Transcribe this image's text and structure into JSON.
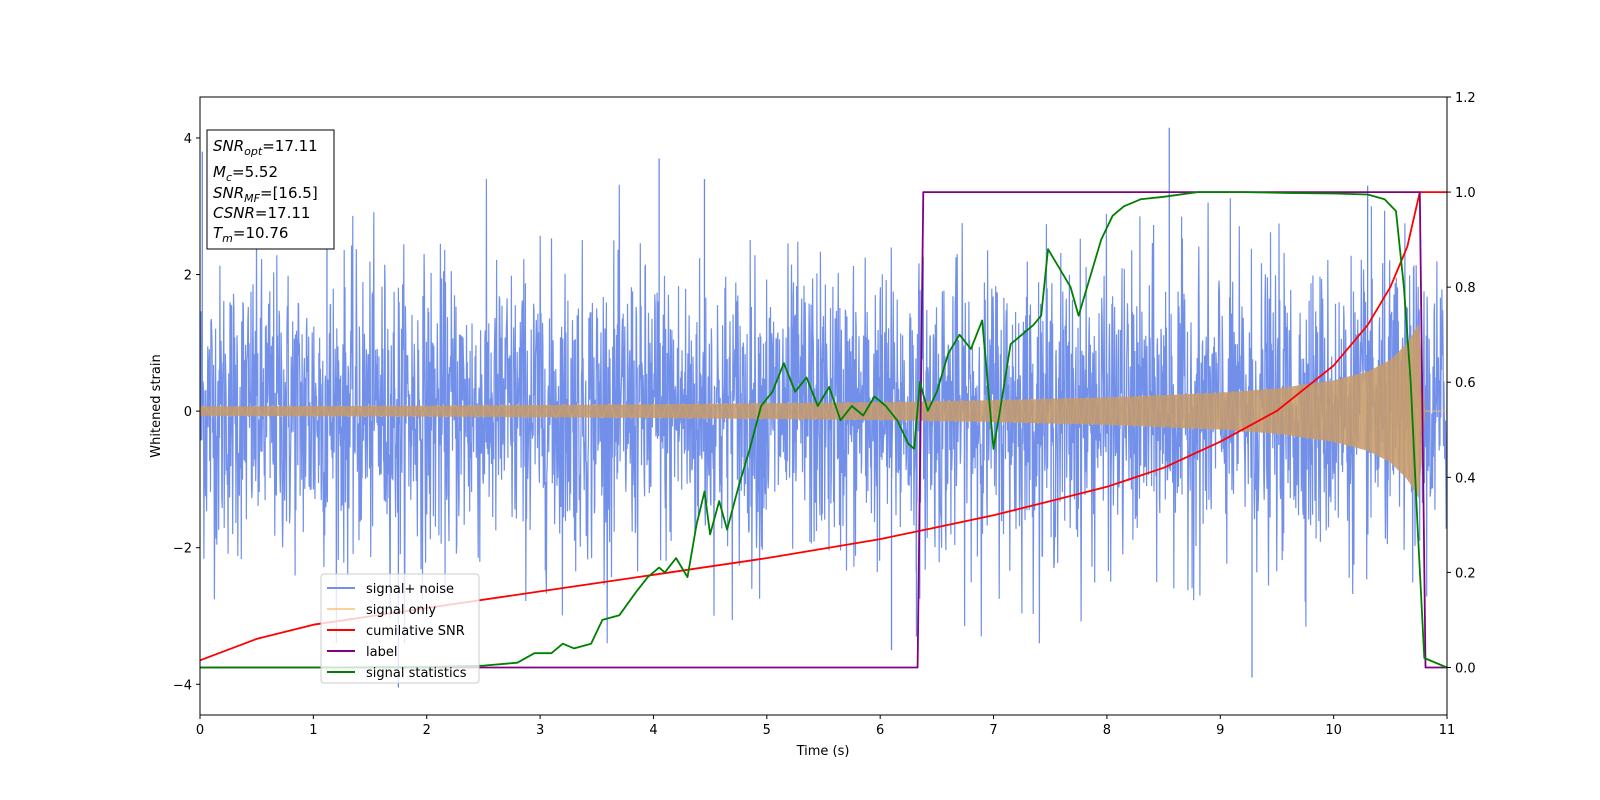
{
  "chart_data": {
    "type": "line",
    "xlabel": "Time (s)",
    "ylabel": "Whitened strain",
    "xlim": [
      0,
      11
    ],
    "ylim_left": [
      -4.45,
      4.6
    ],
    "ylim_right": [
      -0.1,
      1.2
    ],
    "x_ticks": [
      0,
      1,
      2,
      3,
      4,
      5,
      6,
      7,
      8,
      9,
      10,
      11
    ],
    "x_tick_labels": [
      "0",
      "1",
      "2",
      "3",
      "4",
      "5",
      "6",
      "7",
      "8",
      "9",
      "10",
      "11"
    ],
    "y_left_ticks": [
      -4,
      -2,
      0,
      2,
      4
    ],
    "y_left_tick_labels": [
      "−4",
      "−2",
      "0",
      "2",
      "4"
    ],
    "y_right_ticks": [
      0.0,
      0.2,
      0.4,
      0.6,
      0.8,
      1.0,
      1.2
    ],
    "y_right_tick_labels": [
      "0.0",
      "0.2",
      "0.4",
      "0.6",
      "0.8",
      "1.0",
      "1.2"
    ],
    "grid": false,
    "legend_position": "lower-left",
    "info_box": {
      "snr_opt_label": "SNR",
      "snr_opt_sub": "opt",
      "snr_opt_value": "=17.11",
      "mc_label": "M",
      "mc_sub": "c",
      "mc_value": "=5.52",
      "snr_mf_label": "SNR",
      "snr_mf_sub": "MF",
      "snr_mf_value": "=[16.5]",
      "csnr_label": "CSNR",
      "csnr_value": "=17.11",
      "tm_label": "T",
      "tm_sub": "m",
      "tm_value": "=10.76"
    },
    "series": [
      {
        "name": "signal+ noise",
        "axis": "left",
        "color": "#6a8ae8",
        "envelope_note": "noise, approximately -3 to 4",
        "sample_peaks": [
          [
            0.02,
            3.8
          ],
          [
            1.12,
            3.5
          ],
          [
            1.75,
            -4.05
          ],
          [
            4.05,
            3.7
          ],
          [
            4.45,
            3.4
          ],
          [
            6.1,
            -3.5
          ],
          [
            6.32,
            -3.3
          ],
          [
            8.55,
            4.15
          ],
          [
            9.28,
            -3.9
          ],
          [
            10.3,
            3.3
          ]
        ]
      },
      {
        "name": "signal only",
        "axis": "left",
        "color": "#f5c27a",
        "description": "chirp with amplitude growing toward merger at 10.76 s",
        "amplitude_points": [
          [
            0,
            0.07
          ],
          [
            2,
            0.08
          ],
          [
            4,
            0.1
          ],
          [
            6,
            0.13
          ],
          [
            7,
            0.16
          ],
          [
            8,
            0.2
          ],
          [
            9,
            0.27
          ],
          [
            9.5,
            0.33
          ],
          [
            10,
            0.45
          ],
          [
            10.3,
            0.58
          ],
          [
            10.5,
            0.75
          ],
          [
            10.65,
            1.0
          ],
          [
            10.76,
            1.3
          ],
          [
            10.8,
            0.0
          ],
          [
            11,
            0.0
          ]
        ]
      },
      {
        "name": "cumilative SNR",
        "axis": "right",
        "color": "#ff0000",
        "points": [
          [
            0,
            0.015
          ],
          [
            0.5,
            0.06
          ],
          [
            1,
            0.09
          ],
          [
            2,
            0.125
          ],
          [
            3,
            0.16
          ],
          [
            4,
            0.195
          ],
          [
            5,
            0.23
          ],
          [
            6,
            0.27
          ],
          [
            6.5,
            0.295
          ],
          [
            7,
            0.32
          ],
          [
            7.5,
            0.35
          ],
          [
            8,
            0.38
          ],
          [
            8.5,
            0.42
          ],
          [
            9,
            0.475
          ],
          [
            9.5,
            0.54
          ],
          [
            10,
            0.635
          ],
          [
            10.3,
            0.72
          ],
          [
            10.5,
            0.8
          ],
          [
            10.65,
            0.885
          ],
          [
            10.76,
            1.0
          ],
          [
            11,
            1.0
          ]
        ]
      },
      {
        "name": "label",
        "axis": "right",
        "color": "#800080",
        "points": [
          [
            0,
            0.0
          ],
          [
            6.33,
            0.0
          ],
          [
            6.38,
            1.0
          ],
          [
            10.76,
            1.0
          ],
          [
            10.81,
            0.0
          ],
          [
            11,
            0.0
          ]
        ]
      },
      {
        "name": "signal statistics",
        "axis": "right",
        "color": "#008000",
        "points": [
          [
            0,
            0.0
          ],
          [
            1,
            0.0
          ],
          [
            2,
            0.001
          ],
          [
            2.5,
            0.004
          ],
          [
            2.8,
            0.01
          ],
          [
            2.95,
            0.03
          ],
          [
            3.1,
            0.03
          ],
          [
            3.2,
            0.05
          ],
          [
            3.3,
            0.04
          ],
          [
            3.45,
            0.05
          ],
          [
            3.55,
            0.1
          ],
          [
            3.7,
            0.11
          ],
          [
            3.85,
            0.16
          ],
          [
            3.95,
            0.19
          ],
          [
            4.05,
            0.21
          ],
          [
            4.1,
            0.2
          ],
          [
            4.2,
            0.23
          ],
          [
            4.3,
            0.19
          ],
          [
            4.38,
            0.3
          ],
          [
            4.45,
            0.37
          ],
          [
            4.5,
            0.28
          ],
          [
            4.58,
            0.35
          ],
          [
            4.65,
            0.29
          ],
          [
            4.75,
            0.38
          ],
          [
            4.85,
            0.46
          ],
          [
            4.95,
            0.55
          ],
          [
            5.05,
            0.58
          ],
          [
            5.15,
            0.64
          ],
          [
            5.25,
            0.58
          ],
          [
            5.35,
            0.61
          ],
          [
            5.45,
            0.55
          ],
          [
            5.55,
            0.59
          ],
          [
            5.65,
            0.52
          ],
          [
            5.75,
            0.55
          ],
          [
            5.85,
            0.53
          ],
          [
            5.95,
            0.57
          ],
          [
            6.05,
            0.55
          ],
          [
            6.15,
            0.52
          ],
          [
            6.25,
            0.47
          ],
          [
            6.3,
            0.46
          ],
          [
            6.35,
            0.6
          ],
          [
            6.42,
            0.54
          ],
          [
            6.5,
            0.58
          ],
          [
            6.6,
            0.66
          ],
          [
            6.7,
            0.7
          ],
          [
            6.8,
            0.67
          ],
          [
            6.9,
            0.73
          ],
          [
            7.0,
            0.46
          ],
          [
            7.05,
            0.53
          ],
          [
            7.15,
            0.68
          ],
          [
            7.25,
            0.7
          ],
          [
            7.35,
            0.72
          ],
          [
            7.42,
            0.74
          ],
          [
            7.48,
            0.88
          ],
          [
            7.58,
            0.84
          ],
          [
            7.68,
            0.8
          ],
          [
            7.75,
            0.74
          ],
          [
            7.85,
            0.82
          ],
          [
            7.95,
            0.9
          ],
          [
            8.05,
            0.95
          ],
          [
            8.15,
            0.97
          ],
          [
            8.3,
            0.985
          ],
          [
            8.5,
            0.99
          ],
          [
            8.8,
            1.0
          ],
          [
            9.2,
            1.0
          ],
          [
            9.6,
            0.998
          ],
          [
            10.0,
            0.997
          ],
          [
            10.3,
            0.995
          ],
          [
            10.45,
            0.985
          ],
          [
            10.55,
            0.96
          ],
          [
            10.62,
            0.8
          ],
          [
            10.68,
            0.6
          ],
          [
            10.74,
            0.3
          ],
          [
            10.8,
            0.02
          ],
          [
            11,
            0.0
          ]
        ]
      }
    ]
  }
}
